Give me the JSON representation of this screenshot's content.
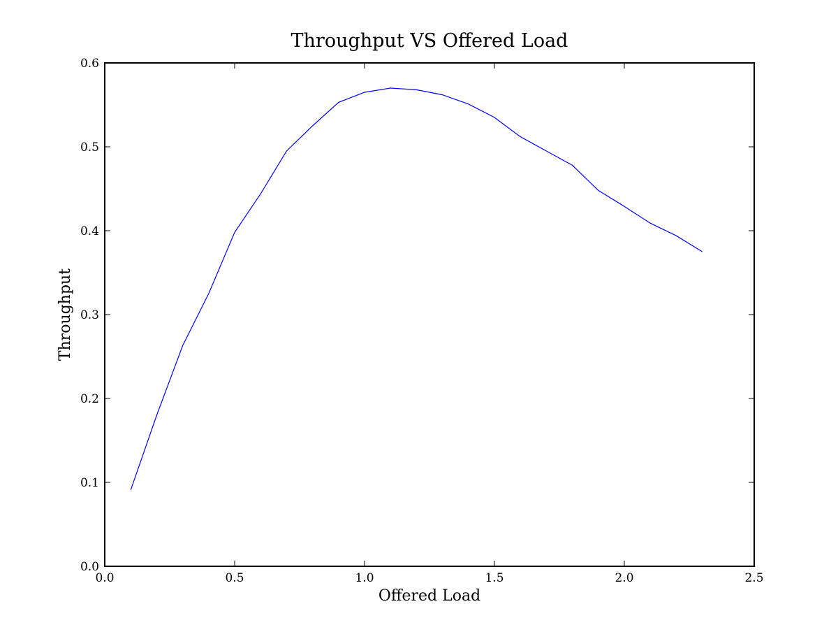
{
  "chart_data": {
    "type": "line",
    "title": "Throughput VS Offered Load",
    "xlabel": "Offered Load",
    "ylabel": "Throughput",
    "xlim": [
      0.0,
      2.5
    ],
    "ylim": [
      0.0,
      0.6
    ],
    "xticks": [
      0.0,
      0.5,
      1.0,
      1.5,
      2.0,
      2.5
    ],
    "yticks": [
      0.0,
      0.1,
      0.2,
      0.3,
      0.4,
      0.5,
      0.6
    ],
    "xtick_labels": [
      "0.0",
      "0.5",
      "1.0",
      "1.5",
      "2.0",
      "2.5"
    ],
    "ytick_labels": [
      "0.0",
      "0.1",
      "0.2",
      "0.3",
      "0.4",
      "0.5",
      "0.6"
    ],
    "grid": false,
    "legend": null,
    "series": [
      {
        "color": "#0000ff",
        "x": [
          0.1,
          0.2,
          0.3,
          0.4,
          0.5,
          0.6,
          0.7,
          0.8,
          0.9,
          1.0,
          1.1,
          1.2,
          1.3,
          1.4,
          1.5,
          1.6,
          1.7,
          1.8,
          1.9,
          2.0,
          2.1,
          2.2,
          2.3
        ],
        "y": [
          0.091,
          0.18,
          0.263,
          0.325,
          0.398,
          0.444,
          0.495,
          0.525,
          0.553,
          0.565,
          0.57,
          0.568,
          0.562,
          0.551,
          0.535,
          0.512,
          0.495,
          0.478,
          0.448,
          0.429,
          0.409,
          0.394,
          0.375
        ]
      }
    ]
  }
}
